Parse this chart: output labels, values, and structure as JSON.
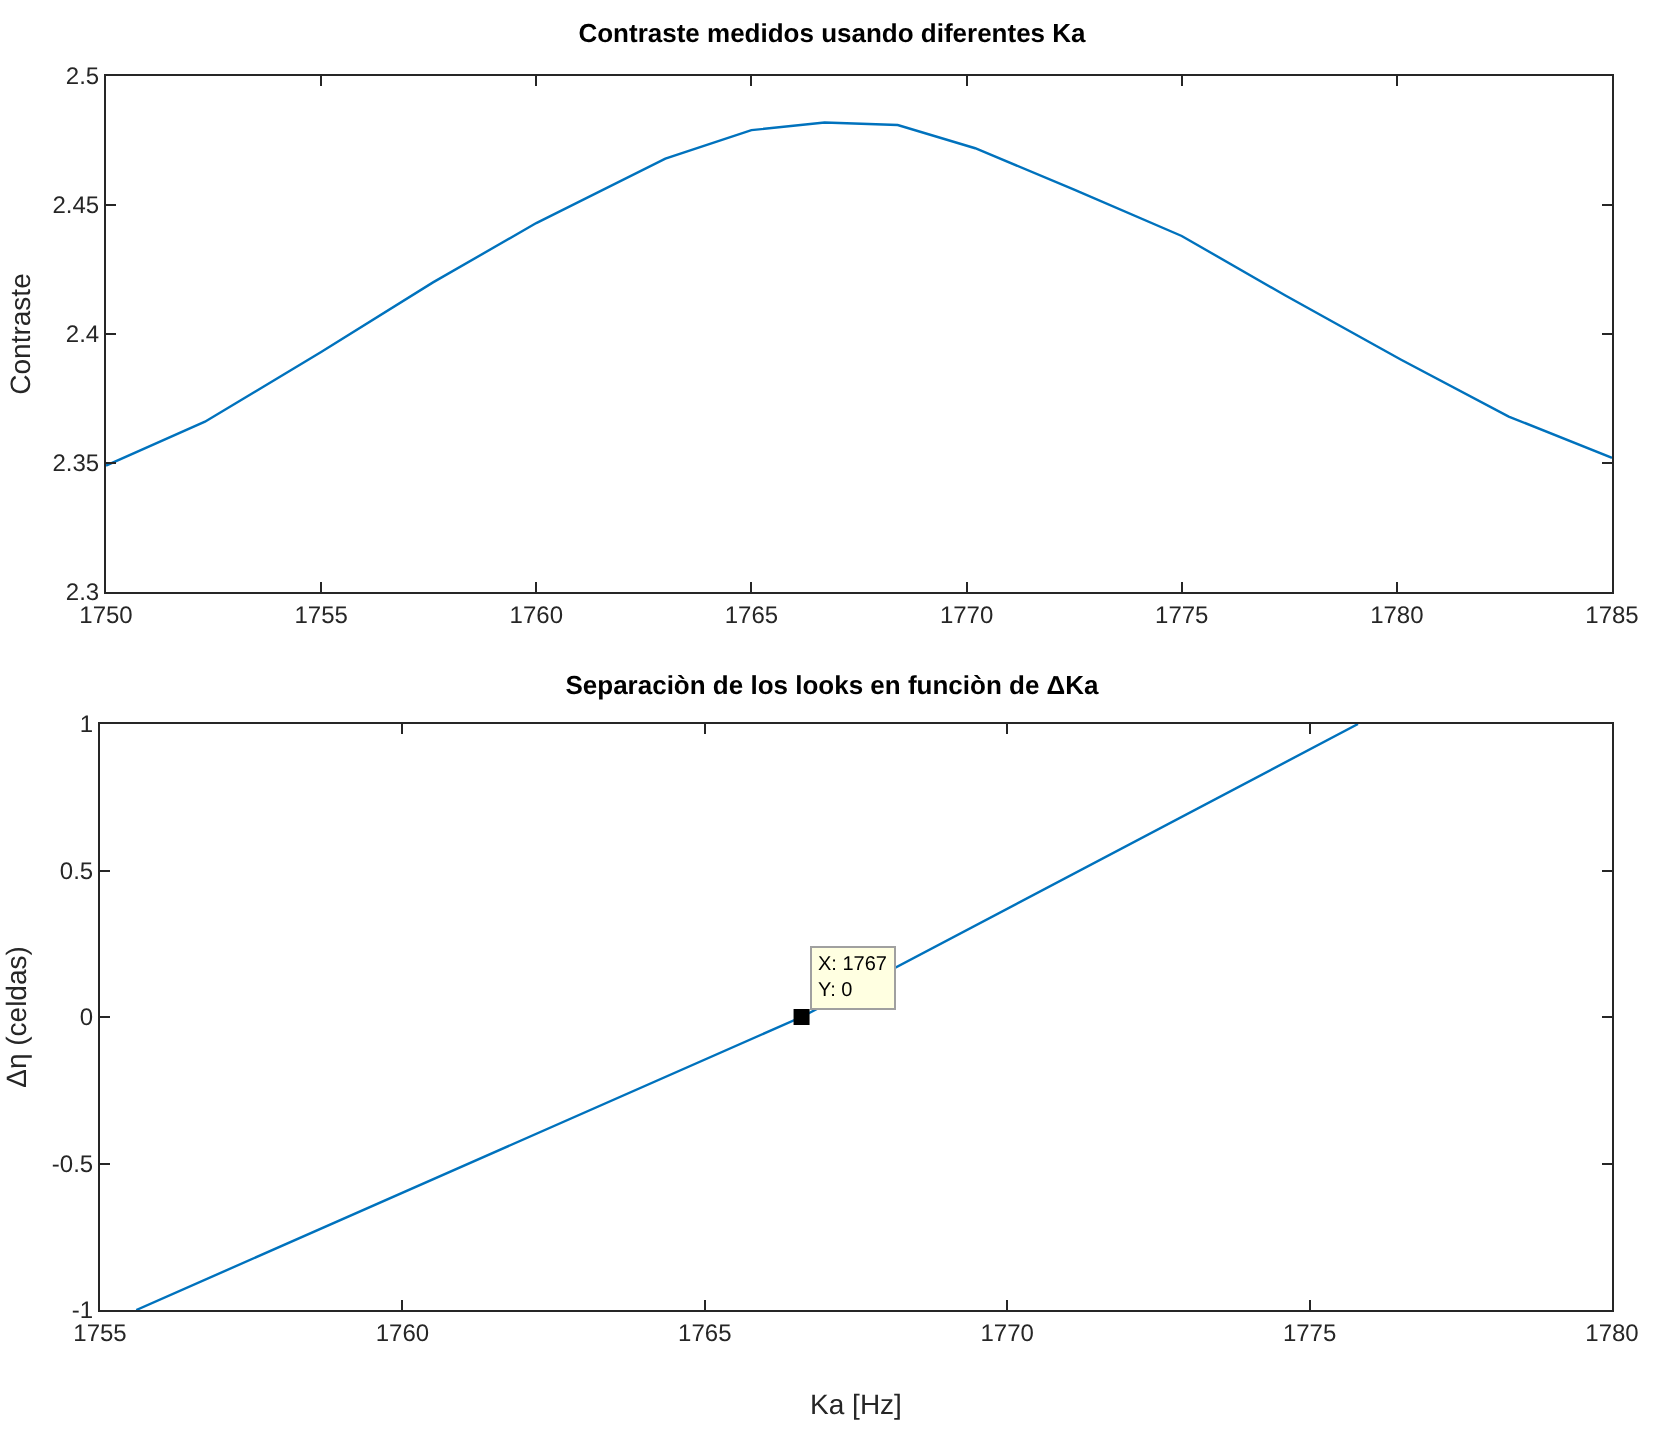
{
  "chart_data": [
    {
      "type": "line",
      "title": "Contraste medidos usando diferentes Ka",
      "ylabel": "Contraste",
      "x": [
        1750,
        1752.3,
        1755,
        1757.6,
        1760,
        1763,
        1765,
        1766.7,
        1768.4,
        1770.2,
        1772.5,
        1775,
        1777.4,
        1780.1,
        1782.6,
        1785
      ],
      "series": [
        {
          "color": "#0072bd",
          "values": [
            2.349,
            2.366,
            2.393,
            2.42,
            2.443,
            2.468,
            2.479,
            2.482,
            2.481,
            2.472,
            2.456,
            2.438,
            2.415,
            2.39,
            2.368,
            2.352
          ]
        }
      ],
      "xlim": [
        1750,
        1785
      ],
      "xticks": [
        1750,
        1755,
        1760,
        1765,
        1770,
        1775,
        1780,
        1785
      ],
      "ylim": [
        2.3,
        2.5
      ],
      "yticks": [
        2.3,
        2.35,
        2.4,
        2.45,
        2.5
      ]
    },
    {
      "type": "line",
      "title": "Separaciòn de los looks en funciòn de ΔKa",
      "xlabel": "Ka [Hz]",
      "ylabel": "Δη (celdas)",
      "x": [
        1755.6,
        1766.6,
        1775.8
      ],
      "series": [
        {
          "color": "#0072bd",
          "values": [
            -1,
            0,
            1
          ]
        }
      ],
      "annotations": [
        {
          "text": "X: 1767\nY: 0",
          "x": 1766.6,
          "y": 0
        }
      ],
      "xlim": [
        1755,
        1780
      ],
      "xticks": [
        1755,
        1760,
        1765,
        1770,
        1775,
        1780
      ],
      "ylim": [
        -1,
        1
      ],
      "yticks": [
        -1,
        -0.5,
        0,
        0.5,
        1
      ]
    }
  ]
}
